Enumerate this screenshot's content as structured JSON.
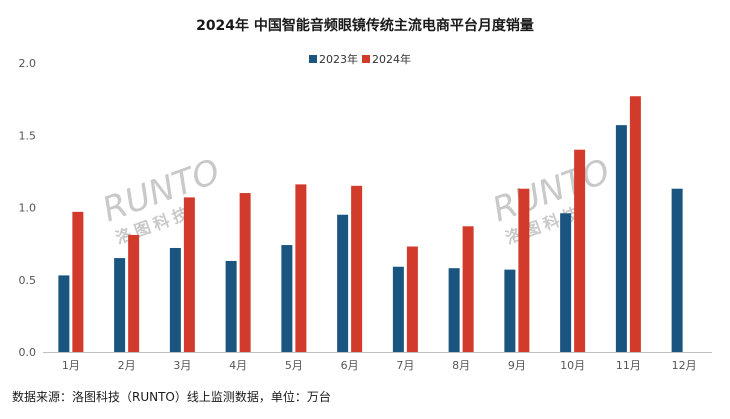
{
  "chart_data": {
    "type": "bar",
    "title": "2024年 中国智能音频眼镜传统主流电商平台月度销量",
    "categories": [
      "1月",
      "2月",
      "3月",
      "4月",
      "5月",
      "6月",
      "7月",
      "8月",
      "9月",
      "10月",
      "11月",
      "12月"
    ],
    "series": [
      {
        "name": "2023年",
        "color": "#1a5580",
        "values": [
          0.53,
          0.65,
          0.72,
          0.63,
          0.74,
          0.95,
          0.59,
          0.58,
          0.57,
          0.96,
          1.57,
          1.13
        ]
      },
      {
        "name": "2024年",
        "color": "#d23a2c",
        "values": [
          0.97,
          0.81,
          1.07,
          1.1,
          1.16,
          1.15,
          0.73,
          0.87,
          1.13,
          1.4,
          1.77,
          null
        ]
      }
    ],
    "ylim": [
      0,
      2.0
    ],
    "yticks": [
      "0.0",
      "0.5",
      "1.0",
      "1.5",
      "2.0"
    ],
    "legend_position": "top-center",
    "grid": false,
    "footer": "数据来源：洛图科技（RUNTO）线上监测数据，单位：万台",
    "watermark": {
      "latin": "RUNTO",
      "chinese": "洛图科技"
    }
  }
}
